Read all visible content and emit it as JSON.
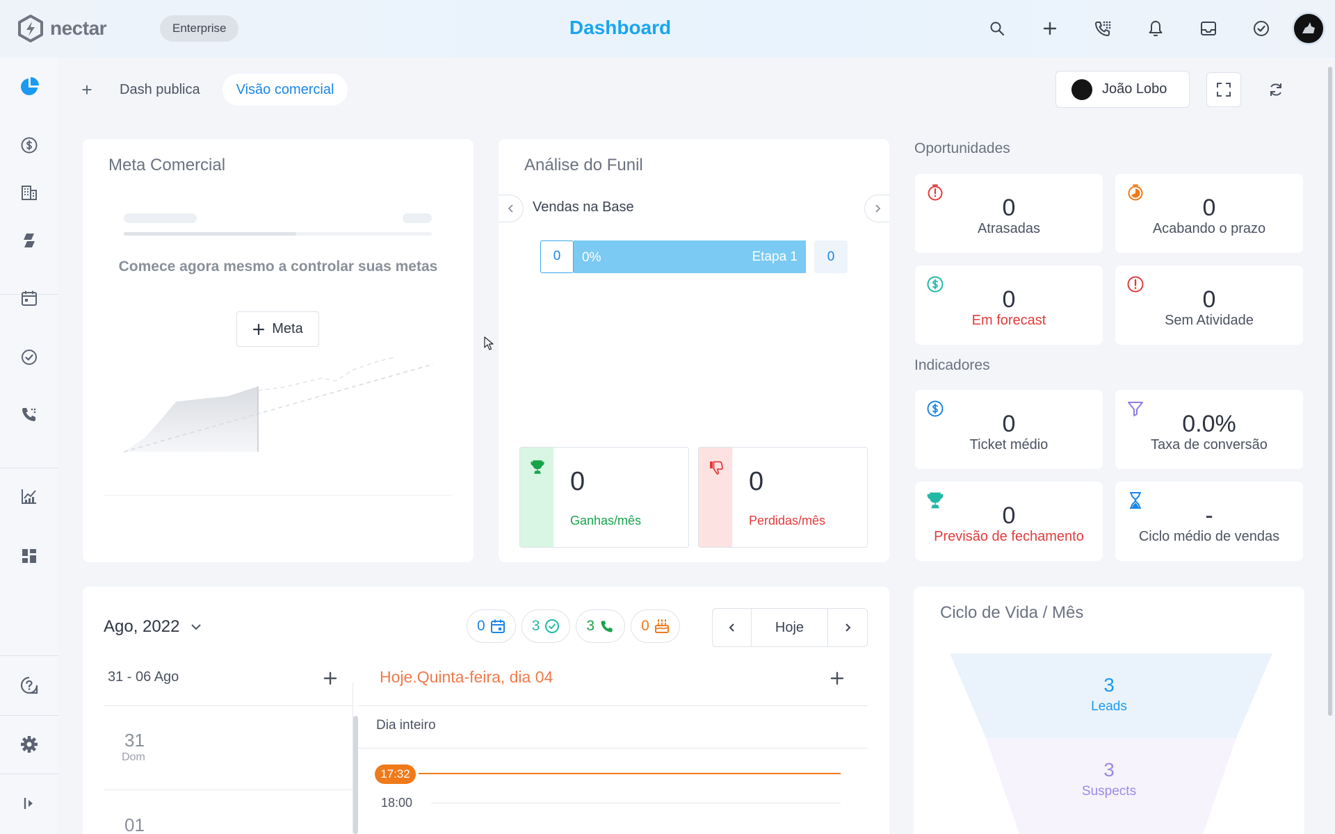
{
  "topbar": {
    "logo": "nectar",
    "plan_badge": "Enterprise",
    "title": "Dashboard"
  },
  "dash_tabs": {
    "add_label": "+",
    "tabs": [
      {
        "label": "Dash publica"
      },
      {
        "label": "Visão comercial"
      }
    ]
  },
  "user": {
    "name": "João Lobo"
  },
  "meta_comercial": {
    "title": "Meta Comercial",
    "cta_text": "Comece agora mesmo a controlar suas metas",
    "button_label": "Meta"
  },
  "funil": {
    "title": "Análise do Funil",
    "pipeline_name": "Vendas na Base",
    "stage": {
      "count_left": "0",
      "percent": "0%",
      "stage_label": "Etapa 1",
      "count_right": "0"
    },
    "won": {
      "value": "0",
      "label": "Ganhas/mês"
    },
    "lost": {
      "value": "0",
      "label": "Perdidas/mês"
    }
  },
  "oportunidades": {
    "title": "Oportunidades",
    "items": [
      {
        "value": "0",
        "label": "Atrasadas",
        "icon": "timer-icon"
      },
      {
        "value": "0",
        "label": "Acabando o prazo",
        "icon": "stopwatch-icon"
      },
      {
        "value": "0",
        "label": "Em forecast",
        "icon": "dollar-icon"
      },
      {
        "value": "0",
        "label": "Sem Atividade",
        "icon": "alert-icon"
      }
    ]
  },
  "indicadores": {
    "title": "Indicadores",
    "items": [
      {
        "value": "0",
        "label": "Ticket médio",
        "icon": "dollar-icon"
      },
      {
        "value": "0.0%",
        "label": "Taxa de conversão",
        "icon": "funnel-icon"
      },
      {
        "value": "0",
        "label": "Previsão de fechamento",
        "icon": "trophy-icon"
      },
      {
        "value": "-",
        "label": "Ciclo médio de vendas",
        "icon": "hourglass-icon"
      }
    ]
  },
  "agenda": {
    "month": "Ago, 2022",
    "counters": [
      {
        "value": "0",
        "icon": "calendar-icon",
        "color": "#1a86e6"
      },
      {
        "value": "3",
        "icon": "check-circle-icon",
        "color": "#22b8a6"
      },
      {
        "value": "3",
        "icon": "phone-icon",
        "color": "#16a34a"
      },
      {
        "value": "0",
        "icon": "cake-icon",
        "color": "#f07a1a"
      }
    ],
    "today_button": "Hoje",
    "week_range": "31 - 06 Ago",
    "today_header": "Hoje.Quinta-feira, dia 04",
    "all_day": "Dia inteiro",
    "now_time": "17:32",
    "time_slot": "18:00",
    "days": [
      {
        "num": "31",
        "dow": "Dom"
      },
      {
        "num": "01",
        "dow": ""
      }
    ]
  },
  "ciclo_vida": {
    "title": "Ciclo de Vida / Mês",
    "stages": [
      {
        "value": "3",
        "label": "Leads"
      },
      {
        "value": "3",
        "label": "Suspects"
      }
    ]
  },
  "colors": {
    "accent": "#1aa5ef",
    "won": "#16a34a",
    "lost": "#e23b3b",
    "now": "#f07a1a"
  }
}
